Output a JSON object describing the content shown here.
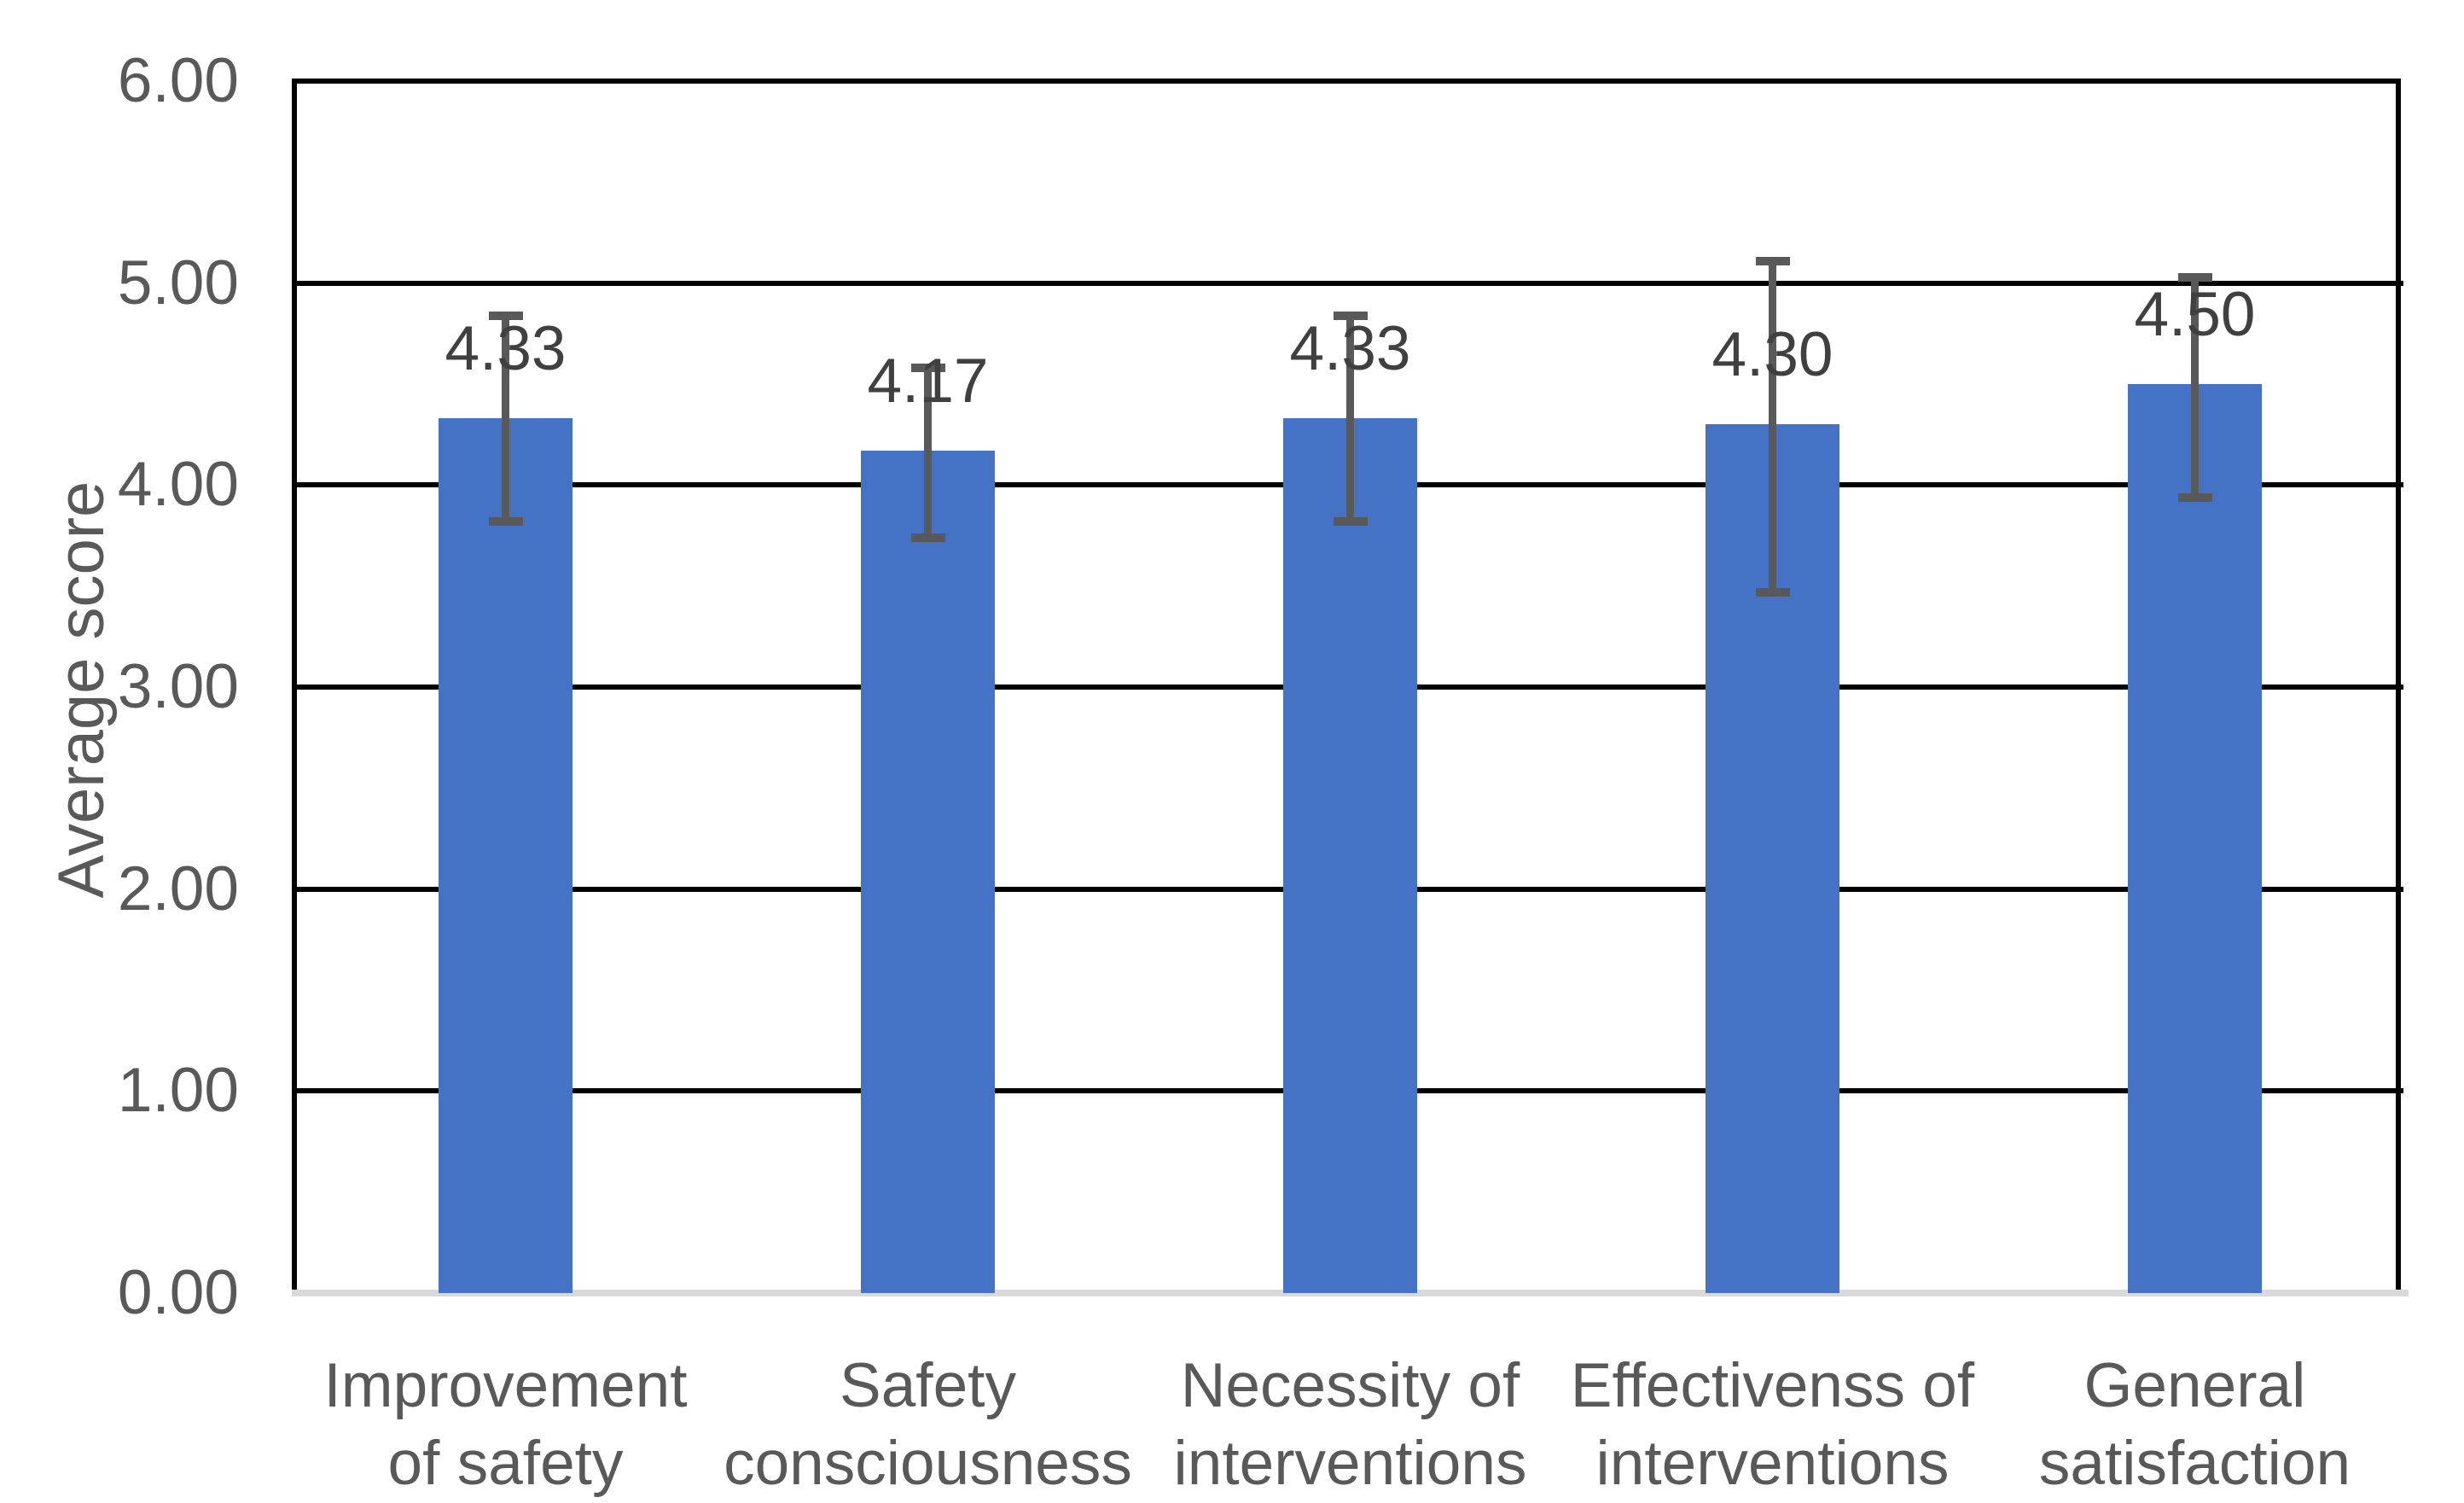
{
  "chart_data": {
    "type": "bar",
    "title": "",
    "xlabel": "",
    "ylabel": "Average score",
    "categories": [
      "Improvement\nof safety",
      "Safety\nconsciousness",
      "Necessity of\ninterventions",
      "Effectivenss of\ninterventions",
      "General\nsatisfaction"
    ],
    "values": [
      4.33,
      4.17,
      4.33,
      4.3,
      4.5
    ],
    "value_labels": [
      "4.33",
      "4.17",
      "4.33",
      "4.30",
      "4.50"
    ],
    "error_low": [
      3.82,
      3.74,
      3.82,
      3.47,
      3.94
    ],
    "error_high": [
      4.84,
      4.58,
      4.84,
      5.11,
      5.03
    ],
    "ylim": [
      0,
      6
    ],
    "y_ticks": [
      {
        "value": 6,
        "label": "6.00"
      },
      {
        "value": 5,
        "label": "5.00"
      },
      {
        "value": 4,
        "label": "4.00"
      },
      {
        "value": 3,
        "label": "3.00"
      },
      {
        "value": 2,
        "label": "2.00"
      },
      {
        "value": 1,
        "label": "1.00"
      },
      {
        "value": 0,
        "label": "0.00"
      }
    ],
    "grid": true,
    "legend_position": "none",
    "colors": {
      "bar": "#4472C4",
      "error_bar": "#595959",
      "data_label": "#404040",
      "axis_text": "#595959",
      "gridline": "#000000",
      "baseline": "#D9D9D9",
      "background": "#FFFFFF"
    }
  }
}
